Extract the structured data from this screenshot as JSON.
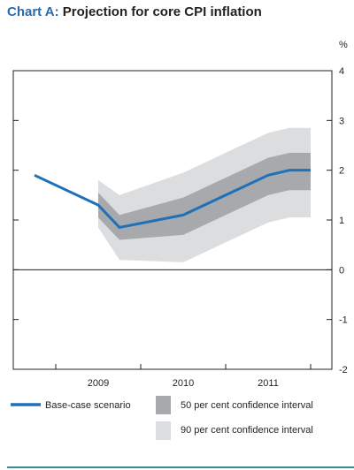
{
  "title": {
    "prefix": "Chart A:",
    "main": "Projection for core CPI inflation"
  },
  "chart_data": {
    "type": "area",
    "unit_label": "%",
    "ylim": [
      -2,
      4
    ],
    "yticks": [
      "4",
      "3",
      "2",
      "1",
      "0",
      "-1",
      "-2"
    ],
    "xlim": [
      2008.0,
      2011.75
    ],
    "xticks": [
      {
        "label": "2009",
        "x": 2009.0
      },
      {
        "label": "2010",
        "x": 2010.0
      },
      {
        "label": "2011",
        "x": 2011.0
      }
    ],
    "x": [
      2008.25,
      2008.5,
      2008.75,
      2009.0,
      2009.25,
      2009.5,
      2009.75,
      2010.0,
      2010.25,
      2010.5,
      2010.75,
      2011.0,
      2011.25,
      2011.5
    ],
    "series": [
      {
        "name": "Base-case scenario",
        "color": "#1f70b8",
        "values": [
          1.9,
          null,
          null,
          1.3,
          0.85,
          null,
          null,
          1.1,
          null,
          null,
          null,
          1.9,
          2.0,
          2.0
        ]
      },
      {
        "name": "50 per cent confidence interval",
        "color": "#a7a9ac",
        "lower": [
          null,
          null,
          null,
          1.05,
          0.6,
          null,
          null,
          0.7,
          null,
          null,
          null,
          1.5,
          1.6,
          1.6
        ],
        "upper": [
          null,
          null,
          null,
          1.55,
          1.1,
          null,
          null,
          1.45,
          null,
          null,
          null,
          2.25,
          2.35,
          2.35
        ]
      },
      {
        "name": "90 per cent confidence interval",
        "color": "#dcddde",
        "lower": [
          null,
          null,
          null,
          0.85,
          0.2,
          null,
          null,
          0.15,
          null,
          null,
          null,
          0.95,
          1.05,
          1.05
        ],
        "upper": [
          null,
          null,
          null,
          1.8,
          1.5,
          null,
          null,
          1.95,
          null,
          null,
          null,
          2.75,
          2.85,
          2.85
        ]
      }
    ],
    "legend": "bottom",
    "grid": false
  }
}
